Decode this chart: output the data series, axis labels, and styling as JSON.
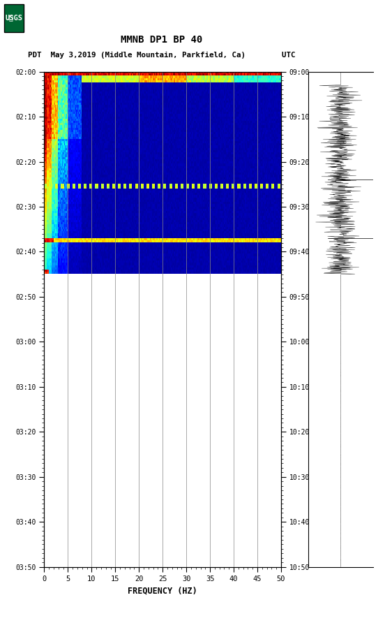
{
  "title_line1": "MMNB DP1 BP 40",
  "title_line2": "PDT  May 3,2019 (Middle Mountain, Parkfield, Ca)        UTC",
  "xlabel": "FREQUENCY (HZ)",
  "freq_min": 0,
  "freq_max": 50,
  "time_labels_pdt": [
    "02:00",
    "02:10",
    "02:20",
    "02:30",
    "02:40",
    "02:50",
    "03:00",
    "03:10",
    "03:20",
    "03:30",
    "03:40",
    "03:50"
  ],
  "time_labels_utc": [
    "09:00",
    "09:10",
    "09:20",
    "09:30",
    "09:40",
    "09:50",
    "10:00",
    "10:10",
    "10:20",
    "10:30",
    "10:40",
    "10:50"
  ],
  "grid_color": "#888888",
  "usgs_color": "#006633",
  "spectrogram_active_minutes": 45,
  "total_minutes": 110,
  "figsize": [
    5.52,
    8.92
  ],
  "dpi": 100
}
